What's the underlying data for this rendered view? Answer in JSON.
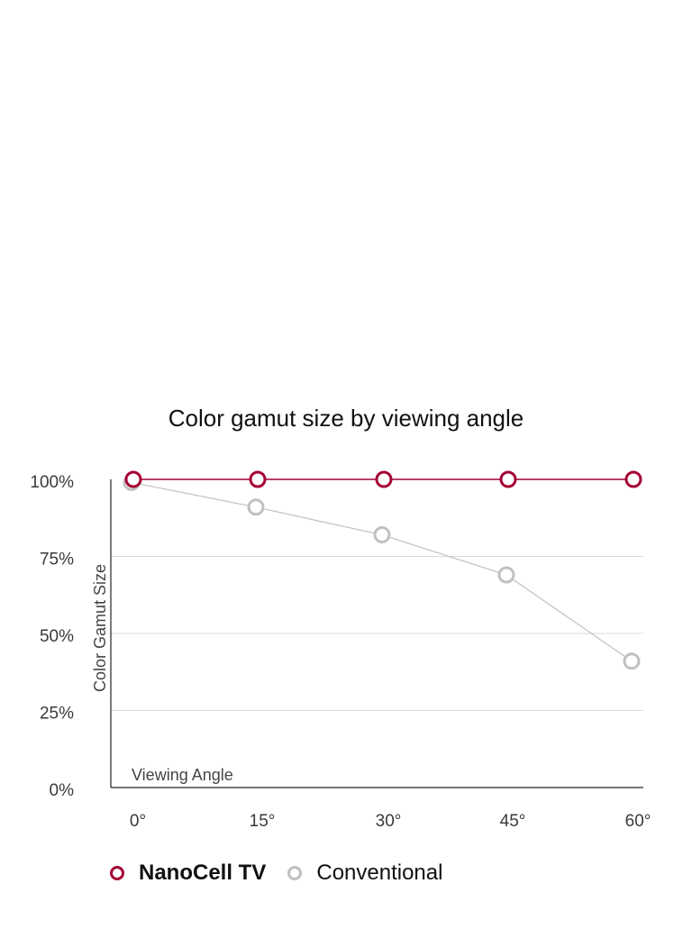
{
  "chart_data": {
    "type": "line",
    "title": "Color gamut size by viewing angle",
    "xlabel": "Viewing Angle",
    "ylabel": "Color Gamut Size",
    "categories": [
      "0°",
      "15°",
      "30°",
      "45°",
      "60°"
    ],
    "y_ticks": [
      "0%",
      "25%",
      "50%",
      "75%",
      "100%"
    ],
    "ylim": [
      0,
      100
    ],
    "grid": true,
    "legend_position": "bottom",
    "series": [
      {
        "name": "NanoCell TV",
        "values": [
          100,
          100,
          100,
          100,
          100
        ],
        "color": "#a50034"
      },
      {
        "name": "Conventional",
        "values": [
          99,
          91,
          82,
          69,
          41
        ],
        "color": "#c0c0c0"
      }
    ]
  }
}
